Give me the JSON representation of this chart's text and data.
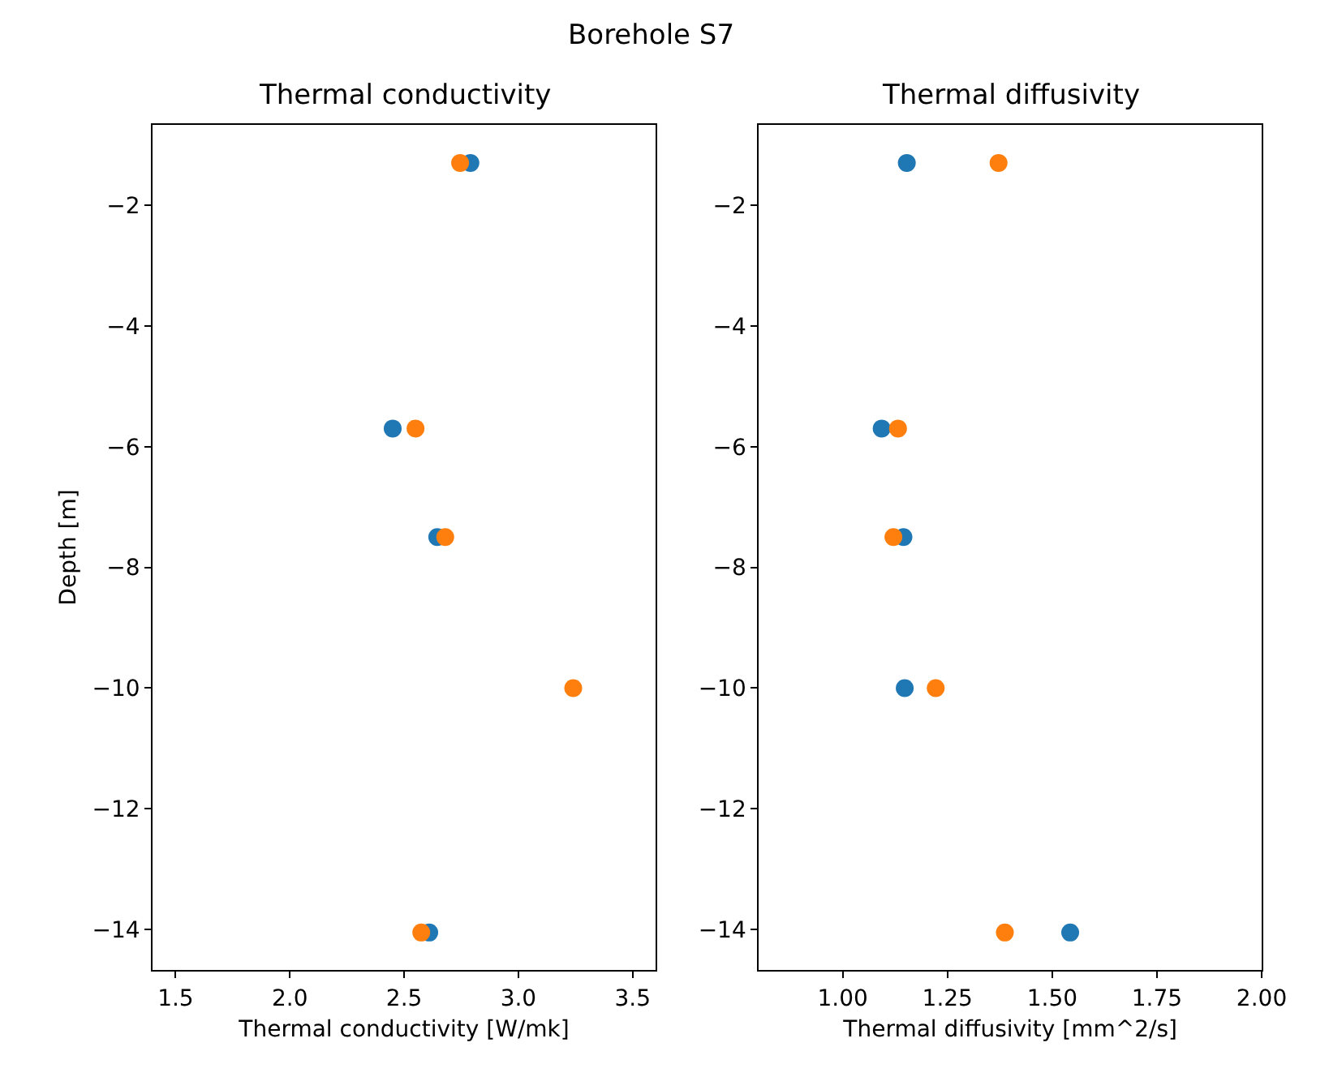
{
  "chart_data": [
    {
      "type": "scatter",
      "title": "Thermal conductivity",
      "xlabel": "Thermal conductivity [W/mk]",
      "ylabel": "Depth [m]",
      "annotations": [
        "Borehole S7"
      ],
      "xlim": [
        1.4,
        3.6
      ],
      "xticks": [
        1.5,
        {
          "value": 2,
          "label": "2.0"
        },
        2.5,
        {
          "value": 3,
          "label": "3.0"
        },
        3.5
      ],
      "ylim": [
        -14.67,
        -0.67
      ],
      "yticks": [
        {
          "value": -2,
          "label": "−2"
        },
        {
          "value": -4,
          "label": "−4"
        },
        {
          "value": -6,
          "label": "−6"
        },
        {
          "value": -8,
          "label": "−8"
        },
        {
          "value": -10,
          "label": "−10"
        },
        {
          "value": -12,
          "label": "−12"
        },
        {
          "value": -14,
          "label": "−14"
        }
      ],
      "marker": "circle",
      "series": [
        {
          "color": "#1f77b4",
          "x": [
            2.79,
            2.45,
            2.645,
            null,
            2.61
          ],
          "values": [
            -1.3,
            -5.7,
            -7.5,
            null,
            -14.05
          ]
        },
        {
          "color": "#ff7f0e",
          "x": [
            2.745,
            2.55,
            2.68,
            3.24,
            2.575
          ],
          "values": [
            -1.3,
            -5.7,
            -7.5,
            -10,
            -14.05
          ]
        }
      ]
    },
    {
      "type": "scatter",
      "title": "Thermal diffusivity",
      "xlabel": "Thermal diffusivity [mm^2/s]",
      "xlim": [
        0.8,
        2.0
      ],
      "xticks": [
        {
          "value": 1,
          "label": "1.00"
        },
        1.25,
        {
          "value": 1.5,
          "label": "1.50"
        },
        1.75,
        {
          "value": 2,
          "label": "2.00"
        }
      ],
      "ylim": [
        -14.67,
        -0.67
      ],
      "yticks": [
        {
          "value": -2,
          "label": "−2"
        },
        {
          "value": -4,
          "label": "−4"
        },
        {
          "value": -6,
          "label": "−6"
        },
        {
          "value": -8,
          "label": "−8"
        },
        {
          "value": -10,
          "label": "−10"
        },
        {
          "value": -12,
          "label": "−12"
        },
        {
          "value": -14,
          "label": "−14"
        }
      ],
      "marker": "circle",
      "series": [
        {
          "color": "#1f77b4",
          "x": [
            1.153,
            1.093,
            1.145,
            1.148,
            1.543
          ],
          "values": [
            -1.3,
            -5.7,
            -7.5,
            -10,
            -14.05
          ]
        },
        {
          "color": "#ff7f0e",
          "x": [
            1.372,
            1.132,
            1.121,
            1.222,
            1.387
          ],
          "values": [
            -1.3,
            -5.7,
            -7.5,
            -10,
            -14.05
          ]
        }
      ]
    }
  ]
}
